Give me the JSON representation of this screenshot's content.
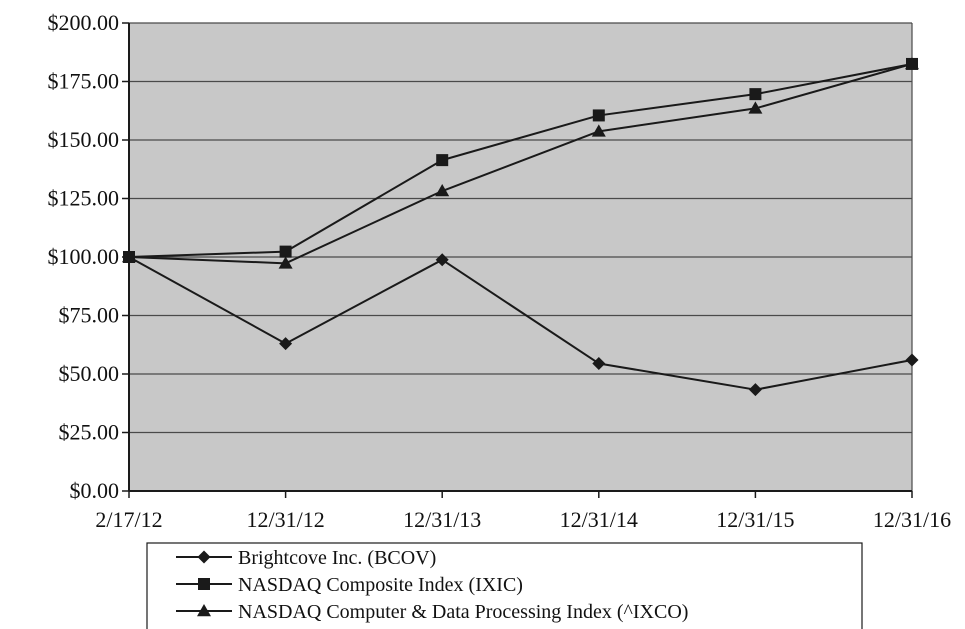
{
  "chart_data": {
    "type": "line",
    "title": "",
    "xlabel": "",
    "ylabel": "",
    "x": [
      "2/17/12",
      "12/31/12",
      "12/31/13",
      "12/31/14",
      "12/31/15",
      "12/31/16"
    ],
    "y_ticks": [
      "$0.00",
      "$25.00",
      "$50.00",
      "$75.00",
      "$100.00",
      "$125.00",
      "$150.00",
      "$175.00",
      "$200.00"
    ],
    "ylim": [
      0,
      200
    ],
    "grid": true,
    "legend_position": "bottom",
    "plot_background": "#c8c8c8",
    "line_color": "#1a1a1a",
    "series": [
      {
        "name": "Brightcove Inc. (BCOV)",
        "marker": "diamond",
        "values": [
          100.0,
          63.0,
          98.8,
          54.5,
          43.3,
          56.0
        ]
      },
      {
        "name": "NASDAQ Composite Index (IXIC)",
        "marker": "square",
        "values": [
          100.0,
          102.3,
          141.4,
          160.5,
          169.6,
          182.5
        ]
      },
      {
        "name": "NASDAQ Computer & Data Processing Index (^IXCO)",
        "marker": "triangle",
        "values": [
          100.0,
          97.3,
          128.2,
          153.7,
          163.5,
          182.5
        ]
      }
    ]
  }
}
